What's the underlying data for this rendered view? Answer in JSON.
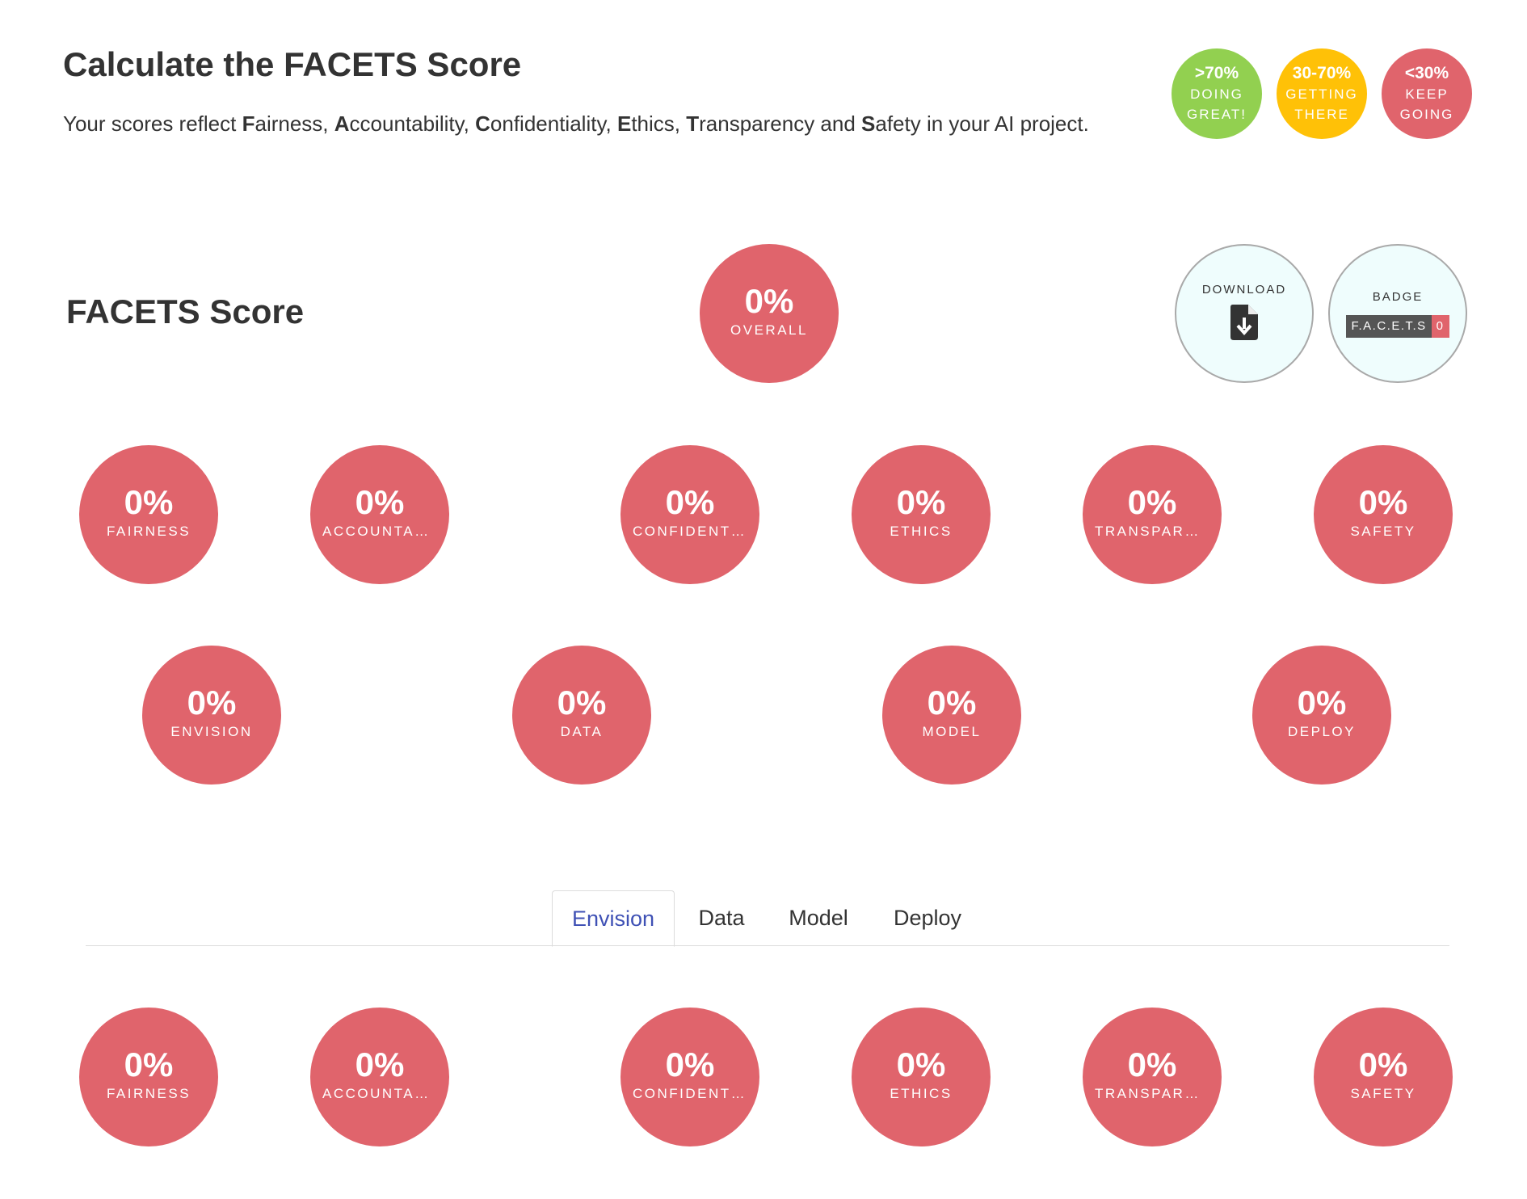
{
  "header": {
    "title": "Calculate the FACETS Score",
    "subtitle": [
      {
        "text": "Your scores reflect ",
        "bold": false
      },
      {
        "text": "F",
        "bold": true
      },
      {
        "text": "airness, ",
        "bold": false
      },
      {
        "text": "A",
        "bold": true
      },
      {
        "text": "ccountability, ",
        "bold": false
      },
      {
        "text": "C",
        "bold": true
      },
      {
        "text": "onfidentiality, ",
        "bold": false
      },
      {
        "text": "E",
        "bold": true
      },
      {
        "text": "thics, ",
        "bold": false
      },
      {
        "text": "T",
        "bold": true
      },
      {
        "text": "ransparency and ",
        "bold": false
      },
      {
        "text": "S",
        "bold": true
      },
      {
        "text": "afety in your AI project.",
        "bold": false
      }
    ]
  },
  "legend": [
    {
      "value": ">70%",
      "line1": "Doing",
      "line2": "great!",
      "color": "#92d050"
    },
    {
      "value": "30-70%",
      "line1": "Getting",
      "line2": "there",
      "color": "#ffc107"
    },
    {
      "value": "<30%",
      "line1": "Keep",
      "line2": "going",
      "color": "#e0646c"
    }
  ],
  "colors": {
    "score_red": "#e0646c",
    "action_bg": "#effdfd",
    "tab_active_text": "#3f51b5"
  },
  "score_section": {
    "title": "FACETS Score",
    "overall": {
      "value": "0%",
      "label": "Overall"
    },
    "download": {
      "label": "Download",
      "icon": "file-download-icon"
    },
    "badge": {
      "label": "Badge",
      "left_text": "F.A.C.E.T.S",
      "right_text": "0"
    }
  },
  "facet_scores": [
    {
      "value": "0%",
      "label": "Fairness"
    },
    {
      "value": "0%",
      "label": "Accountability"
    },
    {
      "value": "0%",
      "label": "Confidentiality"
    },
    {
      "value": "0%",
      "label": "Ethics"
    },
    {
      "value": "0%",
      "label": "Transparency"
    },
    {
      "value": "0%",
      "label": "Safety"
    }
  ],
  "stage_scores": [
    {
      "value": "0%",
      "label": "Envision"
    },
    {
      "value": "0%",
      "label": "Data"
    },
    {
      "value": "0%",
      "label": "Model"
    },
    {
      "value": "0%",
      "label": "Deploy"
    }
  ],
  "tabs": {
    "items": [
      "Envision",
      "Data",
      "Model",
      "Deploy"
    ],
    "active": "Envision"
  },
  "tab_scores": [
    {
      "value": "0%",
      "label": "Fairness"
    },
    {
      "value": "0%",
      "label": "Accountability"
    },
    {
      "value": "0%",
      "label": "Confidentiality"
    },
    {
      "value": "0%",
      "label": "Ethics"
    },
    {
      "value": "0%",
      "label": "Transparency"
    },
    {
      "value": "0%",
      "label": "Safety"
    }
  ]
}
